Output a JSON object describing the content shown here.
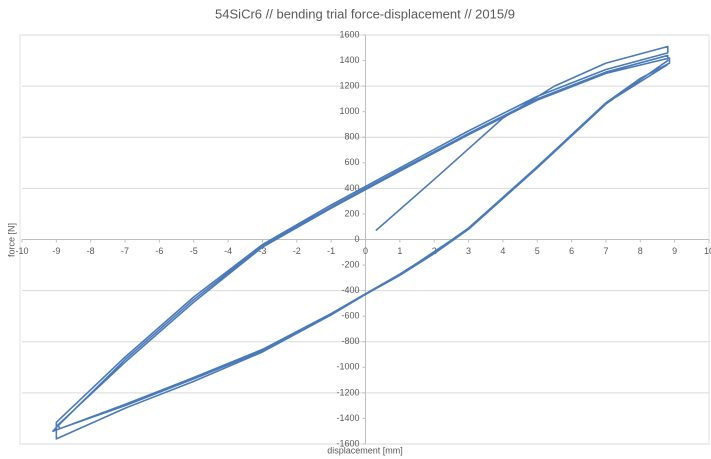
{
  "chart_data": {
    "type": "line",
    "title": "54SiCr6 // bending trial force-displacement // 2015/9",
    "x_label": "displacement [mm]",
    "y_label": "force [N]",
    "color": "#4a7ab8",
    "xlim": [
      -10,
      10
    ],
    "xticks": [
      -10,
      -9,
      -8,
      -7,
      -6,
      -5,
      -4,
      -3,
      -2,
      -1,
      0,
      1,
      2,
      3,
      4,
      5,
      6,
      7,
      8,
      9,
      10
    ],
    "ylim": [
      -1600,
      1600
    ],
    "yticks": [
      -1600,
      -1400,
      -1200,
      -1000,
      -800,
      -600,
      -400,
      -200,
      0,
      200,
      400,
      600,
      800,
      1000,
      1200,
      1400,
      1600
    ],
    "grid": true,
    "ygrid_every": 2,
    "x": [
      0.3,
      2,
      4,
      5.5,
      7,
      8.8,
      8.8,
      7,
      5,
      3,
      1,
      -1,
      -3,
      -5,
      -7,
      -9,
      -9,
      -7,
      -5,
      -3,
      -1,
      0,
      1,
      2,
      3,
      4,
      5,
      6,
      7,
      8,
      8.8,
      8.8,
      7,
      5,
      3,
      1,
      -1,
      -3,
      -5,
      -7,
      -9,
      -9.1,
      -7,
      -5,
      -3,
      -1,
      1,
      2,
      3,
      4,
      5,
      6,
      7,
      8,
      8.85,
      8.85,
      7,
      5,
      3,
      1,
      -1,
      -3,
      -5,
      -7,
      -8.95,
      -8.9,
      -7,
      -5,
      -3,
      -1,
      1,
      3,
      5,
      7,
      8.8
    ],
    "values": [
      70,
      470,
      950,
      1200,
      1380,
      1510,
      1460,
      1330,
      1120,
      850,
      560,
      270,
      -40,
      -450,
      -920,
      -1430,
      -1560,
      -1320,
      -1110,
      -880,
      -590,
      -430,
      -280,
      -110,
      80,
      320,
      560,
      810,
      1060,
      1250,
      1400,
      1440,
      1310,
      1100,
      830,
      545,
      255,
      -50,
      -470,
      -940,
      -1470,
      -1500,
      -1290,
      -1080,
      -860,
      -580,
      -270,
      -100,
      90,
      330,
      570,
      820,
      1070,
      1260,
      1380,
      1420,
      1300,
      1090,
      820,
      535,
      245,
      -60,
      -490,
      -960,
      -1450,
      -1480,
      -1300,
      -1090,
      -870,
      -585,
      -275,
      85,
      565,
      1065,
      1370
    ]
  }
}
